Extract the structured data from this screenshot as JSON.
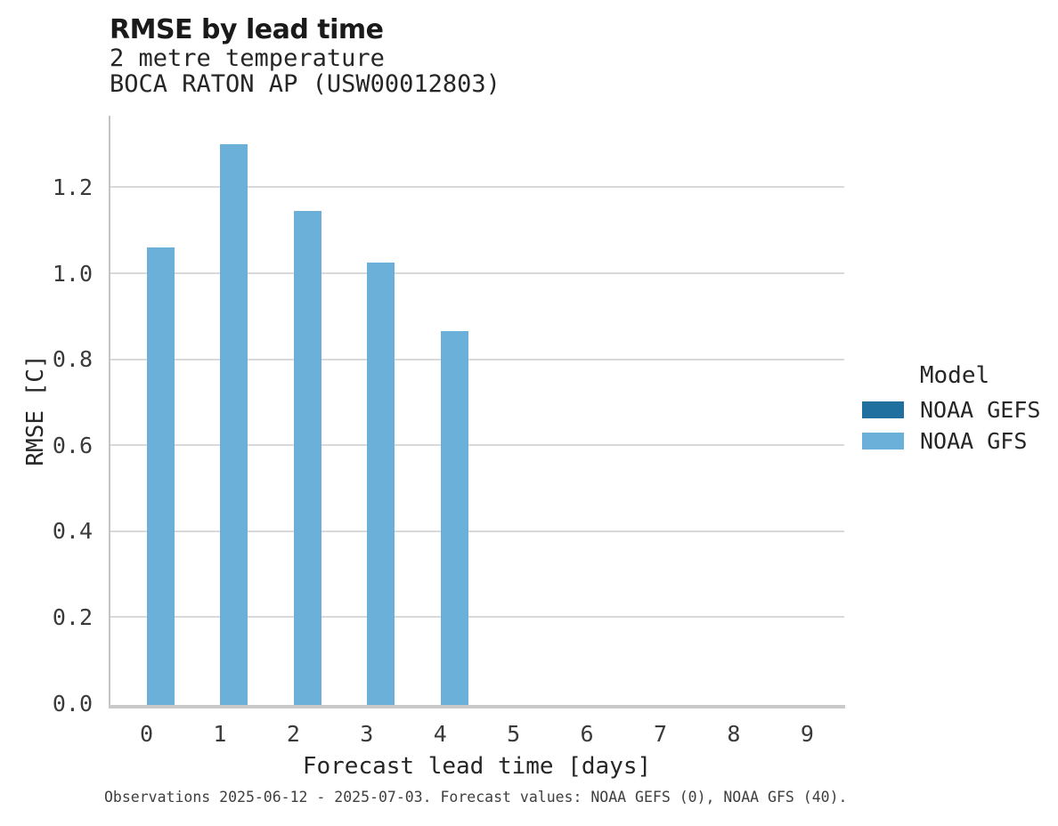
{
  "header": {
    "title": "RMSE by lead time",
    "subtitle_line1": "2 metre temperature",
    "subtitle_line2": "BOCA RATON AP (USW00012803)"
  },
  "chart_data": {
    "type": "bar",
    "title": "RMSE by lead time",
    "subtitle_lines": [
      "2 metre temperature",
      "BOCA RATON AP (USW00012803)"
    ],
    "xlabel": "Forecast lead time [days]",
    "ylabel": "RMSE [C]",
    "categories": [
      "0",
      "1",
      "2",
      "3",
      "4",
      "5",
      "6",
      "7",
      "8",
      "9"
    ],
    "series": [
      {
        "name": "NOAA GEFS",
        "color": "#1f6f9f",
        "values": [
          null,
          null,
          null,
          null,
          null,
          null,
          null,
          null,
          null,
          null
        ]
      },
      {
        "name": "NOAA GFS",
        "color": "#6bb0d8",
        "values": [
          1.06,
          1.3,
          1.145,
          1.025,
          0.865,
          null,
          null,
          null,
          null,
          null
        ]
      }
    ],
    "ylim": [
      0,
      1.365
    ],
    "yticks": [
      0.0,
      0.2,
      0.4,
      0.6,
      0.8,
      1.0,
      1.2
    ],
    "grid": "horizontal",
    "legend_position": "right",
    "legend_title": "Model",
    "footnote": "Observations 2025-06-12 - 2025-07-03. Forecast values: NOAA GEFS (0), NOAA GFS (40)."
  },
  "legend": {
    "title": "Model",
    "entries": [
      {
        "label": "NOAA GEFS",
        "color": "#1f6f9f"
      },
      {
        "label": "NOAA GFS",
        "color": "#6bb0d8"
      }
    ]
  },
  "colors": {
    "gefs": "#1f6f9f",
    "gfs": "#6bb0d8",
    "gridline": "#d9d9d9",
    "spine": "#c4c4c4",
    "text": "#262626"
  },
  "footnote": {
    "text": "Observations 2025-06-12 - 2025-07-03. Forecast values: NOAA GEFS (0), NOAA GFS (40)."
  }
}
